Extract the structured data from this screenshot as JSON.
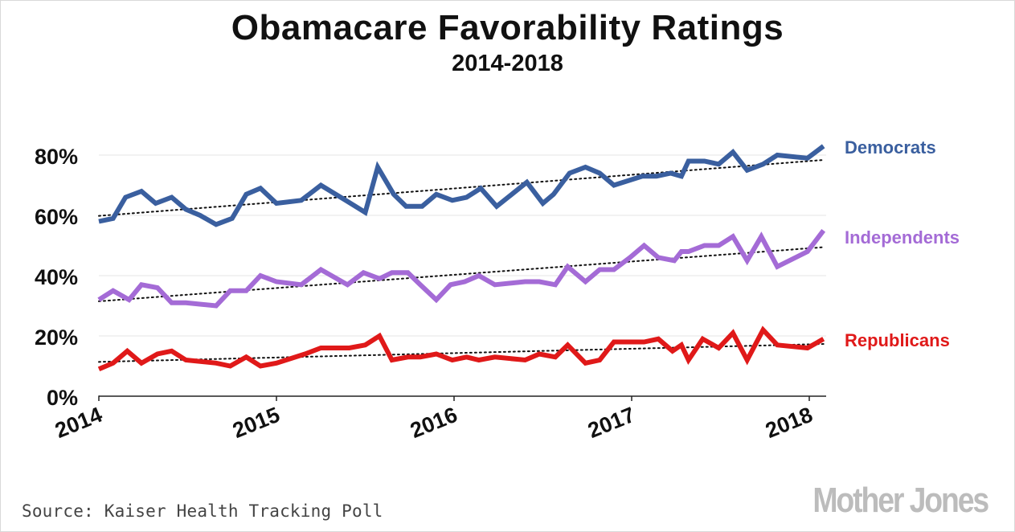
{
  "header": {
    "title": "Obamacare Favorability Ratings",
    "subtitle": "2014-2018"
  },
  "footer": {
    "source": "Source: Kaiser Health Tracking Poll",
    "logo": "Mother Jones"
  },
  "chart_data": {
    "type": "line",
    "title": "Obamacare Favorability Ratings",
    "subtitle": "2014-2018",
    "xlabel": "",
    "ylabel": "",
    "xlim": [
      2014,
      2018.1
    ],
    "ylim": [
      0,
      90
    ],
    "x_ticks": [
      2014,
      2015,
      2016,
      2017,
      2018
    ],
    "x_tick_labels": [
      "2014",
      "2015",
      "2016",
      "2017",
      "2018"
    ],
    "y_ticks": [
      0,
      20,
      40,
      60,
      80
    ],
    "y_tick_labels": [
      "0%",
      "20%",
      "40%",
      "60%",
      "80%"
    ],
    "grid": "horizontal",
    "legend": "right-end labels",
    "trendlines": true,
    "series": [
      {
        "name": "Democrats",
        "color": "#3a5f9f",
        "x": [
          2014.0,
          2014.08,
          2014.15,
          2014.24,
          2014.32,
          2014.41,
          2014.49,
          2014.57,
          2014.66,
          2014.75,
          2014.83,
          2014.91,
          2015.0,
          2015.14,
          2015.25,
          2015.39,
          2015.5,
          2015.57,
          2015.66,
          2015.73,
          2015.82,
          2015.9,
          2015.99,
          2016.07,
          2016.15,
          2016.24,
          2016.41,
          2016.5,
          2016.56,
          2016.65,
          2016.74,
          2016.82,
          2016.9,
          2017.06,
          2017.14,
          2017.22,
          2017.28,
          2017.32,
          2017.41,
          2017.49,
          2017.57,
          2017.65,
          2017.74,
          2017.82,
          2017.99,
          2018.08
        ],
        "values": [
          58,
          59,
          66,
          68,
          64,
          66,
          62,
          60,
          57,
          59,
          67,
          69,
          64,
          65,
          70,
          65,
          61,
          76,
          67,
          63,
          63,
          67,
          65,
          66,
          69,
          63,
          71,
          64,
          67,
          74,
          76,
          74,
          70,
          73,
          73,
          74,
          73,
          78,
          78,
          77,
          81,
          75,
          77,
          80,
          79,
          83
        ]
      },
      {
        "name": "Independents",
        "color": "#a46bd6",
        "x": [
          2014.0,
          2014.08,
          2014.17,
          2014.24,
          2014.33,
          2014.41,
          2014.49,
          2014.66,
          2014.74,
          2014.83,
          2014.91,
          2015.0,
          2015.14,
          2015.25,
          2015.4,
          2015.49,
          2015.58,
          2015.65,
          2015.74,
          2015.81,
          2015.9,
          2015.98,
          2016.06,
          2016.14,
          2016.23,
          2016.4,
          2016.48,
          2016.57,
          2016.64,
          2016.74,
          2016.82,
          2016.9,
          2016.99,
          2017.07,
          2017.15,
          2017.24,
          2017.28,
          2017.32,
          2017.41,
          2017.49,
          2017.57,
          2017.65,
          2017.73,
          2017.82,
          2017.99,
          2018.08
        ],
        "values": [
          32,
          35,
          32,
          37,
          36,
          31,
          31,
          30,
          35,
          35,
          40,
          38,
          37,
          42,
          37,
          41,
          39,
          41,
          41,
          37,
          32,
          37,
          38,
          40,
          37,
          38,
          38,
          37,
          43,
          38,
          42,
          42,
          46,
          50,
          46,
          45,
          48,
          48,
          50,
          50,
          53,
          45,
          53,
          43,
          48,
          55
        ]
      },
      {
        "name": "Republicans",
        "color": "#e01919",
        "x": [
          2014.0,
          2014.08,
          2014.16,
          2014.24,
          2014.33,
          2014.41,
          2014.49,
          2014.66,
          2014.74,
          2014.83,
          2014.91,
          2015.0,
          2015.16,
          2015.25,
          2015.41,
          2015.5,
          2015.58,
          2015.65,
          2015.74,
          2015.81,
          2015.9,
          2015.99,
          2016.07,
          2016.14,
          2016.23,
          2016.4,
          2016.48,
          2016.57,
          2016.64,
          2016.74,
          2016.82,
          2016.9,
          2017.07,
          2017.15,
          2017.23,
          2017.28,
          2017.32,
          2017.4,
          2017.49,
          2017.57,
          2017.65,
          2017.74,
          2017.82,
          2017.99,
          2018.08
        ],
        "values": [
          9,
          11,
          15,
          11,
          14,
          15,
          12,
          11,
          10,
          13,
          10,
          11,
          14,
          16,
          16,
          17,
          20,
          12,
          13,
          13,
          14,
          12,
          13,
          12,
          13,
          12,
          14,
          13,
          17,
          11,
          12,
          18,
          18,
          19,
          15,
          17,
          12,
          19,
          16,
          21,
          12,
          22,
          17,
          16,
          19
        ]
      }
    ]
  }
}
